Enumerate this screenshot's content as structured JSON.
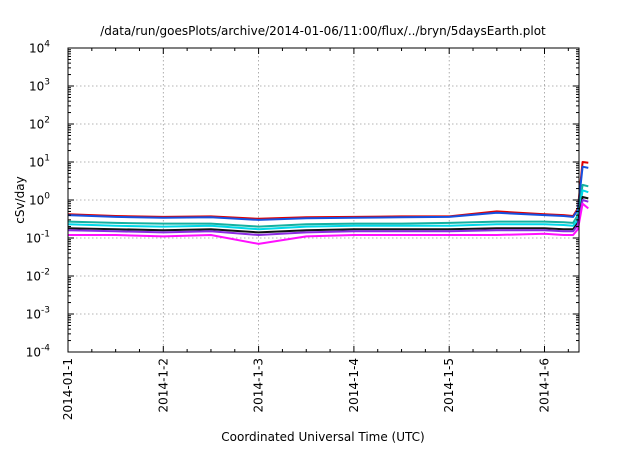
{
  "chart_data": {
    "type": "line",
    "title": "/data/run/goesPlots/archive/2014-01-06/11:00/flux/../bryn/5daysEarth.plot",
    "xlabel": "Coordinated Universal Time (UTC)",
    "ylabel": "cSv/day",
    "yscale": "log",
    "ylim": [
      0.0001,
      10000
    ],
    "y_ticks": [
      {
        "value": 0.0001,
        "mant": "10",
        "exp": "-4"
      },
      {
        "value": 0.001,
        "mant": "10",
        "exp": "-3"
      },
      {
        "value": 0.01,
        "mant": "10",
        "exp": "-2"
      },
      {
        "value": 0.1,
        "mant": "10",
        "exp": "-1"
      },
      {
        "value": 1,
        "mant": "10",
        "exp": "0"
      },
      {
        "value": 10,
        "mant": "10",
        "exp": "1"
      },
      {
        "value": 100,
        "mant": "10",
        "exp": "2"
      },
      {
        "value": 1000,
        "mant": "10",
        "exp": "3"
      },
      {
        "value": 10000,
        "mant": "10",
        "exp": "4"
      }
    ],
    "xlim": [
      "2014-01-01",
      "2014-01-06 11:00"
    ],
    "x_tick_labels": [
      "2014-01-1",
      "2014-1-2",
      "2014-1-3",
      "2014-1-4",
      "2014-1-5",
      "2014-1-6"
    ],
    "grid": true,
    "legend": "none",
    "x_days": [
      0,
      0.5,
      1,
      1.5,
      2,
      2.5,
      3,
      3.5,
      4,
      4.5,
      5,
      5.2,
      5.3,
      5.35,
      5.4,
      5.46
    ],
    "series": [
      {
        "color": "#e00000",
        "values": [
          0.42,
          0.38,
          0.36,
          0.37,
          0.32,
          0.35,
          0.36,
          0.37,
          0.37,
          0.5,
          0.42,
          0.4,
          0.38,
          0.6,
          10,
          9.5
        ]
      },
      {
        "color": "#1550e0",
        "values": [
          0.4,
          0.36,
          0.34,
          0.35,
          0.3,
          0.33,
          0.34,
          0.35,
          0.36,
          0.46,
          0.4,
          0.38,
          0.36,
          0.55,
          7.5,
          7
        ]
      },
      {
        "color": "#14b0a0",
        "values": [
          0.27,
          0.25,
          0.24,
          0.24,
          0.2,
          0.23,
          0.24,
          0.24,
          0.25,
          0.27,
          0.27,
          0.26,
          0.25,
          0.4,
          2.5,
          2.3
        ]
      },
      {
        "color": "#00d8e8",
        "values": [
          0.23,
          0.21,
          0.2,
          0.21,
          0.17,
          0.2,
          0.21,
          0.21,
          0.21,
          0.23,
          0.23,
          0.22,
          0.21,
          0.3,
          1.8,
          1.6
        ]
      },
      {
        "color": "#111111",
        "values": [
          0.18,
          0.17,
          0.16,
          0.17,
          0.14,
          0.16,
          0.17,
          0.17,
          0.17,
          0.18,
          0.18,
          0.17,
          0.17,
          0.25,
          1.2,
          1.1
        ]
      },
      {
        "color": "#8a2be2",
        "values": [
          0.16,
          0.15,
          0.14,
          0.15,
          0.12,
          0.14,
          0.15,
          0.15,
          0.15,
          0.16,
          0.16,
          0.15,
          0.15,
          0.22,
          1,
          0.9
        ]
      },
      {
        "color": "#ff10ff",
        "values": [
          0.12,
          0.12,
          0.11,
          0.12,
          0.07,
          0.11,
          0.12,
          0.12,
          0.12,
          0.12,
          0.13,
          0.12,
          0.12,
          0.17,
          0.8,
          0.6
        ]
      }
    ]
  }
}
